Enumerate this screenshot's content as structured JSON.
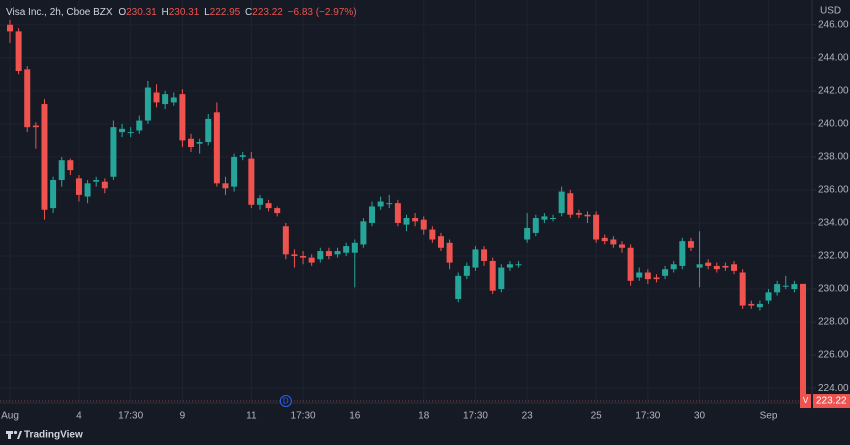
{
  "chart_data": {
    "type": "candlestick",
    "title": "Visa Inc., 2h, Cboe BZX",
    "ohlc_labels": [
      "O",
      "H",
      "L",
      "C"
    ],
    "change_label": "−6.83 (−2.97%)",
    "currency": "USD",
    "symbol_marker": "V",
    "dividend_marker": "D",
    "brand": "TradingView",
    "up_color": "#26a69a",
    "down_color": "#ef5350",
    "grid": true,
    "categories": [
      "Aug",
      null,
      null,
      null,
      null,
      null,
      null,
      null,
      "4",
      null,
      null,
      null,
      null,
      null,
      "17:30",
      null,
      null,
      null,
      null,
      null,
      "9",
      null,
      null,
      null,
      null,
      null,
      null,
      null,
      "11",
      null,
      null,
      null,
      null,
      null,
      "17:30",
      null,
      null,
      null,
      null,
      null,
      "16",
      null,
      null,
      null,
      null,
      null,
      null,
      null,
      "18",
      null,
      null,
      null,
      null,
      null,
      "17:30",
      null,
      null,
      null,
      null,
      null,
      "23",
      null,
      null,
      null,
      null,
      null,
      null,
      null,
      "25",
      null,
      null,
      null,
      null,
      null,
      "17:30",
      null,
      null,
      null,
      null,
      null,
      "30",
      null,
      null,
      null,
      null,
      null,
      null,
      null,
      "Sep",
      null,
      null,
      null,
      null
    ],
    "open": [
      246.0,
      245.6,
      243.3,
      239.9,
      241.2,
      234.9,
      236.6,
      237.8,
      236.7,
      235.6,
      236.5,
      236.5,
      236.8,
      239.5,
      239.5,
      239.6,
      240.2,
      241.9,
      241.2,
      241.3,
      241.8,
      239.1,
      238.8,
      238.9,
      240.7,
      236.4,
      236.2,
      238.0,
      237.9,
      235.1,
      235.2,
      234.9,
      233.8,
      232.1,
      232.0,
      231.9,
      231.8,
      232.3,
      232.1,
      232.2,
      232.2,
      232.7,
      234.0,
      235.0,
      235.2,
      235.2,
      233.9,
      234.3,
      234.2,
      233.6,
      233.2,
      232.8,
      229.4,
      230.8,
      231.3,
      232.4,
      231.7,
      230.0,
      231.3,
      231.5,
      233.0,
      233.4,
      234.2,
      234.3,
      234.6,
      235.8,
      234.6,
      234.5,
      234.5,
      233.1,
      233.0,
      232.7,
      232.5,
      230.7,
      231.0,
      230.7,
      230.8,
      231.2,
      231.4,
      232.9,
      231.3,
      231.6,
      231.4,
      231.4,
      231.5,
      231.0,
      229.1,
      228.9,
      229.3,
      229.8,
      230.2,
      230.0,
      230.31
    ],
    "high": [
      246.3,
      245.8,
      243.5,
      240.1,
      241.5,
      236.8,
      238.0,
      237.9,
      236.9,
      236.6,
      236.8,
      236.7,
      240.2,
      240.0,
      239.8,
      240.5,
      242.6,
      242.4,
      242.0,
      241.9,
      242.1,
      239.4,
      239.1,
      240.6,
      241.3,
      236.8,
      238.2,
      238.3,
      238.3,
      235.7,
      235.4,
      235.0,
      234.0,
      232.4,
      232.3,
      232.1,
      232.5,
      232.5,
      232.5,
      232.8,
      233.0,
      234.3,
      235.3,
      235.6,
      235.7,
      235.4,
      234.5,
      234.6,
      234.4,
      233.8,
      233.4,
      233.0,
      231.0,
      231.6,
      232.6,
      232.6,
      231.9,
      231.5,
      231.7,
      231.7,
      234.6,
      234.5,
      234.6,
      234.5,
      236.2,
      236.0,
      234.8,
      234.7,
      234.7,
      233.3,
      233.2,
      232.9,
      232.7,
      231.3,
      231.2,
      230.9,
      231.4,
      231.7,
      233.1,
      233.1,
      233.5,
      231.8,
      231.6,
      231.6,
      231.7,
      231.2,
      229.3,
      229.3,
      230.0,
      230.5,
      230.8,
      230.5,
      230.31
    ],
    "low": [
      244.9,
      243.0,
      239.5,
      238.5,
      234.2,
      234.6,
      236.2,
      236.9,
      235.3,
      235.2,
      236.2,
      235.8,
      236.6,
      239.2,
      239.2,
      239.4,
      240.0,
      241.0,
      240.9,
      241.1,
      238.6,
      238.3,
      238.2,
      238.7,
      236.2,
      235.7,
      235.9,
      237.8,
      234.9,
      234.8,
      234.7,
      234.4,
      231.8,
      231.3,
      231.5,
      231.4,
      231.6,
      231.8,
      231.9,
      232.0,
      230.1,
      232.5,
      233.8,
      234.8,
      234.9,
      233.8,
      233.5,
      233.8,
      233.3,
      232.8,
      232.3,
      231.2,
      229.2,
      230.6,
      231.1,
      231.4,
      229.7,
      229.8,
      231.1,
      231.3,
      232.8,
      233.2,
      234.0,
      234.1,
      234.4,
      234.3,
      234.3,
      234.0,
      232.8,
      232.7,
      232.5,
      232.2,
      230.2,
      230.5,
      230.3,
      230.4,
      230.6,
      231.0,
      231.2,
      232.3,
      230.1,
      231.2,
      231.0,
      231.1,
      230.9,
      228.8,
      228.8,
      228.7,
      229.1,
      229.6,
      230.0,
      229.8,
      222.95
    ],
    "close": [
      245.6,
      243.2,
      239.8,
      239.8,
      234.8,
      236.6,
      237.8,
      237.2,
      235.7,
      236.4,
      236.6,
      236.1,
      239.8,
      239.7,
      239.5,
      240.2,
      242.2,
      241.3,
      241.8,
      241.6,
      239.0,
      238.6,
      238.9,
      240.3,
      236.4,
      236.1,
      238.0,
      238.1,
      235.1,
      235.5,
      234.9,
      234.6,
      232.1,
      232.0,
      231.9,
      231.6,
      232.3,
      232.0,
      232.3,
      232.6,
      232.8,
      234.1,
      235.0,
      235.3,
      235.2,
      234.0,
      234.3,
      234.1,
      233.6,
      233.0,
      232.5,
      231.6,
      230.8,
      231.4,
      232.4,
      231.7,
      229.9,
      231.3,
      231.5,
      231.5,
      233.7,
      234.3,
      234.4,
      234.3,
      235.9,
      234.5,
      234.5,
      234.4,
      233.0,
      232.9,
      232.7,
      232.5,
      230.5,
      231.0,
      230.6,
      230.6,
      231.2,
      231.5,
      232.9,
      232.5,
      231.5,
      231.4,
      231.2,
      231.3,
      231.1,
      229.0,
      229.0,
      229.1,
      229.8,
      230.3,
      230.2,
      230.3,
      223.22
    ],
    "ylim": [
      223.1,
      247.5
    ],
    "yticks": [
      {
        "value": 224,
        "label": "224.00"
      },
      {
        "value": 226,
        "label": "226.00"
      },
      {
        "value": 228,
        "label": "228.00"
      },
      {
        "value": 230,
        "label": "230.00"
      },
      {
        "value": 232,
        "label": "232.00"
      },
      {
        "value": 234,
        "label": "234.00"
      },
      {
        "value": 236,
        "label": "236.00"
      },
      {
        "value": 238,
        "label": "238.00"
      },
      {
        "value": 240,
        "label": "240.00"
      },
      {
        "value": 242,
        "label": "242.00"
      },
      {
        "value": 244,
        "label": "244.00"
      },
      {
        "value": 246,
        "label": "246.00"
      }
    ]
  }
}
